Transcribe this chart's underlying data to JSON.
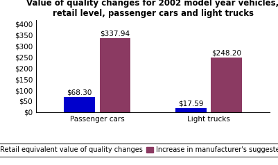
{
  "title": "Value of quality changes for 2002 model year vehicles,\nretail level, passenger cars and light trucks",
  "categories": [
    "Passenger cars",
    "Light trucks"
  ],
  "series1_label": "Retail equivalent value of quality changes",
  "series2_label": "Increase in manufacturer's suggested list price",
  "series1_values": [
    68.3,
    17.59
  ],
  "series2_values": [
    337.94,
    248.2
  ],
  "series1_color": "#0000CC",
  "series2_color": "#8B3A62",
  "series1_annotations": [
    "$68.30",
    "$17.59"
  ],
  "series2_annotations": [
    "$337.94",
    "$248.20"
  ],
  "ylim": [
    0,
    420
  ],
  "yticks": [
    0,
    50,
    100,
    150,
    200,
    250,
    300,
    350,
    400
  ],
  "ytick_labels": [
    "$0",
    "$50",
    "$100",
    "$150",
    "$200",
    "$250",
    "$300",
    "$350",
    "$400"
  ],
  "bar_width": 0.28,
  "title_fontsize": 8.5,
  "tick_fontsize": 7.5,
  "legend_fontsize": 7,
  "annotation_fontsize": 7.5,
  "background_color": "#ffffff"
}
